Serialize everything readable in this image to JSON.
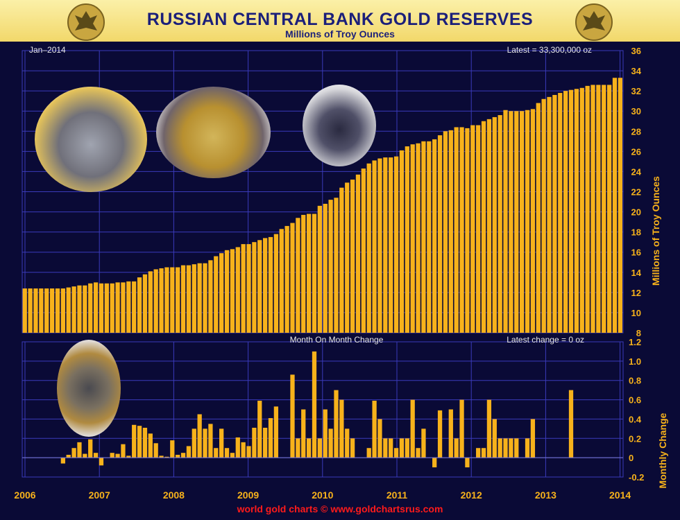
{
  "header": {
    "title": "RUSSIAN CENTRAL BANK GOLD RESERVES",
    "subtitle": "Millions of Troy Ounces"
  },
  "footer": "world gold charts © www.goldchartsrus.com",
  "chart_data": [
    {
      "type": "bar",
      "ylabel": "Millions of Troy Ounces",
      "annotation_left": "Jan–2014",
      "annotation_right": "Latest = 33,300,000 oz",
      "ylim": [
        8,
        36
      ],
      "yticks": [
        8,
        10,
        12,
        14,
        16,
        18,
        20,
        22,
        24,
        26,
        28,
        30,
        32,
        34,
        36
      ],
      "values": [
        12.4,
        12.4,
        12.4,
        12.4,
        12.4,
        12.4,
        12.4,
        12.4,
        12.5,
        12.6,
        12.7,
        12.7,
        12.9,
        13.0,
        12.9,
        12.9,
        12.9,
        13.0,
        13.0,
        13.1,
        13.1,
        13.5,
        13.8,
        14.1,
        14.3,
        14.4,
        14.5,
        14.5,
        14.5,
        14.7,
        14.7,
        14.8,
        14.9,
        14.9,
        15.2,
        15.6,
        15.9,
        16.2,
        16.3,
        16.5,
        16.8,
        16.8,
        17.0,
        17.2,
        17.4,
        17.5,
        17.8,
        18.3,
        18.6,
        18.9,
        19.4,
        19.7,
        19.8,
        19.8,
        20.6,
        20.8,
        21.2,
        21.4,
        22.4,
        22.9,
        23.2,
        23.7,
        24.3,
        24.8,
        25.1,
        25.3,
        25.4,
        25.4,
        25.5,
        26.1,
        26.5,
        26.7,
        26.8,
        27.0,
        27.0,
        27.2,
        27.6,
        28.0,
        28.1,
        28.4,
        28.4,
        28.3,
        28.6,
        28.6,
        29.0,
        29.2,
        29.4,
        29.6,
        30.1,
        30.0,
        30.0,
        30.0,
        30.1,
        30.2,
        30.8,
        31.2,
        31.4,
        31.6,
        31.8,
        32.0,
        32.1,
        32.2,
        32.3,
        32.5,
        32.6,
        32.6,
        32.6,
        32.6,
        33.3,
        33.3
      ]
    },
    {
      "type": "bar",
      "title": "Month On Month Change",
      "ylabel": "Monthly Change",
      "annotation_right": "Latest change = 0 oz",
      "ylim": [
        -0.2,
        1.2
      ],
      "yticks": [
        -0.2,
        0,
        0.2,
        0.4,
        0.6,
        0.8,
        1.0,
        1.2
      ],
      "ytick_labels": [
        "-0.2",
        "0",
        "0.2",
        "0.4",
        "0.6",
        "0.8",
        "1.0",
        "1.2"
      ],
      "values": [
        0,
        0,
        0,
        0,
        0,
        0,
        0,
        -0.06,
        0.03,
        0.1,
        0.16,
        0.04,
        0.19,
        0.05,
        -0.08,
        0,
        0.05,
        0.04,
        0.14,
        0.02,
        0.34,
        0.33,
        0.31,
        0.25,
        0.15,
        0.02,
        0.01,
        0.18,
        0.03,
        0.05,
        0.12,
        0.3,
        0.45,
        0.3,
        0.35,
        0.1,
        0.3,
        0.1,
        0.05,
        0.21,
        0.16,
        0.12,
        0.31,
        0.59,
        0.31,
        0.41,
        0.53,
        0,
        0,
        0.86,
        0.2,
        0.5,
        0.2,
        1.1,
        0.2,
        0.5,
        0.3,
        0.7,
        0.6,
        0.3,
        0.2,
        0,
        0,
        0.1,
        0.59,
        0.4,
        0.2,
        0.2,
        0.1,
        0.2,
        0.2,
        0.6,
        0.1,
        0.3,
        0,
        -0.1,
        0.49,
        0,
        0.5,
        0.2,
        0.6,
        -0.1,
        0,
        0.1,
        0.1,
        0.6,
        0.4,
        0.2,
        0.2,
        0.2,
        0.2,
        0,
        0.2,
        0.4,
        0,
        0,
        0,
        0,
        0,
        0,
        0.7,
        0
      ]
    }
  ],
  "x_axis": {
    "tick_labels": [
      "2006",
      "2007",
      "2008",
      "2009",
      "2010",
      "2011",
      "2012",
      "2013",
      "2014"
    ]
  },
  "colors": {
    "bar": "#f7b21b",
    "grid": "#3b3bbb",
    "background": "#0a0a36",
    "axis_text": "#f7b21b",
    "footer": "#ff1a1a",
    "title": "#1b1f7a"
  },
  "grid": true
}
